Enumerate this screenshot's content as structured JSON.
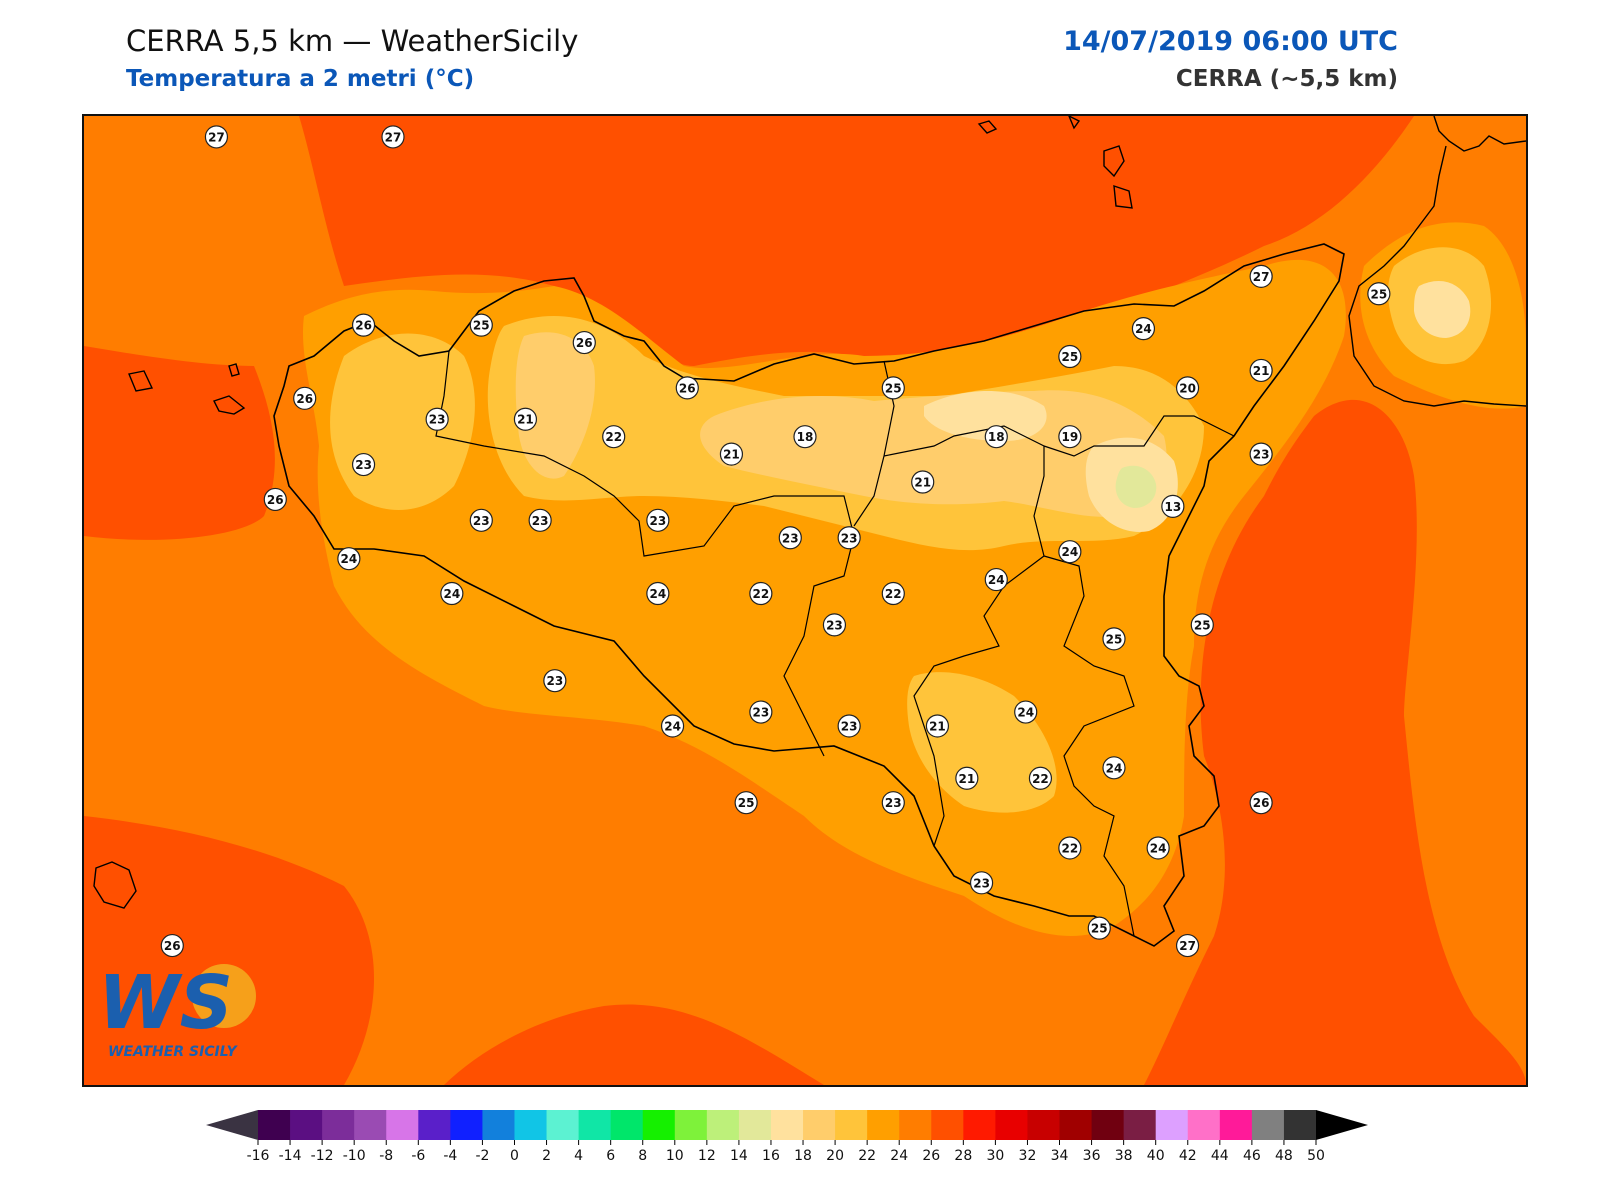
{
  "header": {
    "title": "CERRA 5,5 km — WeatherSicily",
    "subtitle": "Temperatura a 2 metri (°C)",
    "datetime": "14/07/2019 06:00 UTC",
    "model": "CERRA (~5,5 km)"
  },
  "logo": {
    "letters": "WS",
    "text": "WEATHER SICILY",
    "icon": "weather-sicily-logo"
  },
  "colors": {
    "c28": "#ff5000",
    "c26": "#ff7d00",
    "c24": "#ff9f00",
    "c22": "#ffc43a",
    "c20": "#ffcd6b",
    "c18": "#ffe19e",
    "c14": "#e2e89a",
    "coast": "#000000"
  },
  "stations": [
    {
      "v": "27",
      "lon": 12.45,
      "lat": 38.72
    },
    {
      "v": "27",
      "lon": 13.05,
      "lat": 38.72
    },
    {
      "v": "26",
      "lon": 12.95,
      "lat": 38.18
    },
    {
      "v": "25",
      "lon": 13.35,
      "lat": 38.18
    },
    {
      "v": "26",
      "lon": 13.7,
      "lat": 38.13
    },
    {
      "v": "26",
      "lon": 12.75,
      "lat": 37.97
    },
    {
      "v": "23",
      "lon": 13.2,
      "lat": 37.91
    },
    {
      "v": "21",
      "lon": 13.5,
      "lat": 37.91
    },
    {
      "v": "22",
      "lon": 13.8,
      "lat": 37.86
    },
    {
      "v": "26",
      "lon": 14.05,
      "lat": 38.0
    },
    {
      "v": "23",
      "lon": 12.95,
      "lat": 37.78
    },
    {
      "v": "26",
      "lon": 12.65,
      "lat": 37.68
    },
    {
      "v": "23",
      "lon": 13.35,
      "lat": 37.62
    },
    {
      "v": "23",
      "lon": 13.55,
      "lat": 37.62
    },
    {
      "v": "23",
      "lon": 13.95,
      "lat": 37.62
    },
    {
      "v": "21",
      "lon": 14.2,
      "lat": 37.81
    },
    {
      "v": "18",
      "lon": 14.45,
      "lat": 37.86
    },
    {
      "v": "25",
      "lon": 14.75,
      "lat": 38.0
    },
    {
      "v": "23",
      "lon": 14.4,
      "lat": 37.57
    },
    {
      "v": "23",
      "lon": 14.6,
      "lat": 37.57
    },
    {
      "v": "21",
      "lon": 14.85,
      "lat": 37.73
    },
    {
      "v": "18",
      "lon": 15.1,
      "lat": 37.86
    },
    {
      "v": "19",
      "lon": 15.35,
      "lat": 37.86
    },
    {
      "v": "25",
      "lon": 15.35,
      "lat": 38.09
    },
    {
      "v": "24",
      "lon": 15.6,
      "lat": 38.17
    },
    {
      "v": "27",
      "lon": 16.0,
      "lat": 38.32
    },
    {
      "v": "25",
      "lon": 16.4,
      "lat": 38.27
    },
    {
      "v": "20",
      "lon": 15.75,
      "lat": 38.0
    },
    {
      "v": "21",
      "lon": 16.0,
      "lat": 38.05
    },
    {
      "v": "23",
      "lon": 16.0,
      "lat": 37.81
    },
    {
      "v": "13",
      "lon": 15.7,
      "lat": 37.66
    },
    {
      "v": "24",
      "lon": 15.35,
      "lat": 37.53
    },
    {
      "v": "24",
      "lon": 15.1,
      "lat": 37.45
    },
    {
      "v": "22",
      "lon": 14.75,
      "lat": 37.41
    },
    {
      "v": "22",
      "lon": 14.3,
      "lat": 37.41
    },
    {
      "v": "24",
      "lon": 13.95,
      "lat": 37.41
    },
    {
      "v": "24",
      "lon": 13.25,
      "lat": 37.41
    },
    {
      "v": "24",
      "lon": 12.9,
      "lat": 37.51
    },
    {
      "v": "23",
      "lon": 14.55,
      "lat": 37.32
    },
    {
      "v": "25",
      "lon": 15.5,
      "lat": 37.28
    },
    {
      "v": "25",
      "lon": 15.8,
      "lat": 37.32
    },
    {
      "v": "23",
      "lon": 13.6,
      "lat": 37.16
    },
    {
      "v": "23",
      "lon": 14.3,
      "lat": 37.07
    },
    {
      "v": "24",
      "lon": 14.0,
      "lat": 37.03
    },
    {
      "v": "23",
      "lon": 14.6,
      "lat": 37.03
    },
    {
      "v": "21",
      "lon": 14.9,
      "lat": 37.03
    },
    {
      "v": "24",
      "lon": 15.2,
      "lat": 37.07
    },
    {
      "v": "21",
      "lon": 15.0,
      "lat": 36.88
    },
    {
      "v": "22",
      "lon": 15.25,
      "lat": 36.88
    },
    {
      "v": "24",
      "lon": 15.5,
      "lat": 36.91
    },
    {
      "v": "26",
      "lon": 16.0,
      "lat": 36.81
    },
    {
      "v": "25",
      "lon": 14.25,
      "lat": 36.81
    },
    {
      "v": "23",
      "lon": 14.75,
      "lat": 36.81
    },
    {
      "v": "22",
      "lon": 15.35,
      "lat": 36.68
    },
    {
      "v": "24",
      "lon": 15.65,
      "lat": 36.68
    },
    {
      "v": "23",
      "lon": 15.05,
      "lat": 36.58
    },
    {
      "v": "25",
      "lon": 15.45,
      "lat": 36.45
    },
    {
      "v": "27",
      "lon": 15.75,
      "lat": 36.4
    },
    {
      "v": "26",
      "lon": 12.3,
      "lat": 36.4
    }
  ],
  "colorbar": {
    "ticks": [
      "-16",
      "-14",
      "-12",
      "-10",
      "-8",
      "-6",
      "-4",
      "-2",
      "0",
      "2",
      "4",
      "6",
      "8",
      "10",
      "12",
      "14",
      "16",
      "18",
      "20",
      "22",
      "24",
      "26",
      "28",
      "30",
      "32",
      "34",
      "36",
      "38",
      "40",
      "42",
      "44",
      "46",
      "48",
      "50"
    ],
    "colors": [
      "#3a3342",
      "#3f0050",
      "#5b0f82",
      "#7c2d9a",
      "#9a4bb3",
      "#d775e8",
      "#5a1fc9",
      "#1020ff",
      "#1280dc",
      "#11c5e6",
      "#5cf2d2",
      "#10e6a6",
      "#00e66a",
      "#15f000",
      "#7ef23a",
      "#bdf07a",
      "#e2e89a",
      "#ffe19e",
      "#ffcd6b",
      "#ffc43a",
      "#ff9f00",
      "#ff7d00",
      "#ff5000",
      "#ff1a00",
      "#e80000",
      "#c80000",
      "#a00000",
      "#700010",
      "#7a1e44",
      "#dda0ff",
      "#ff70c8",
      "#ff1a99",
      "#808080",
      "#333333",
      "#000000"
    ]
  }
}
